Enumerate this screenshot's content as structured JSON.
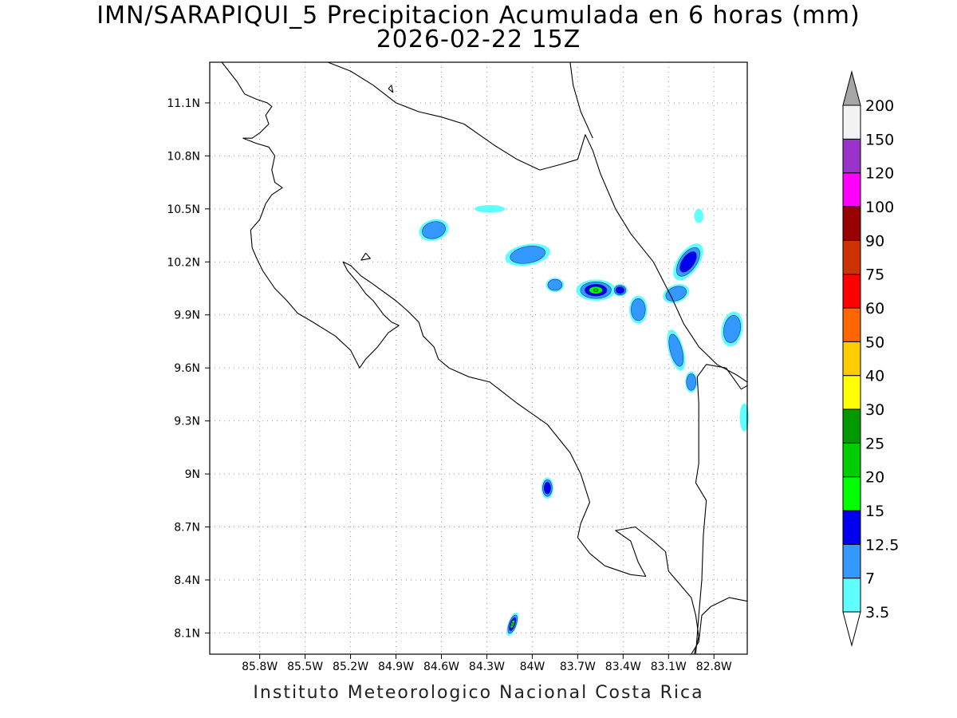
{
  "title": {
    "line1": "IMN/SARAPIQUI_5 Precipitacion Acumulada en 6 horas (mm)",
    "line2": "2026-02-22 15Z"
  },
  "footer": "Instituto Meteorologico Nacional Costa Rica",
  "map": {
    "lon_range": [
      -86.13,
      -82.58
    ],
    "lat_range": [
      7.98,
      11.33
    ],
    "x_ticks": [
      "85.8W",
      "85.5W",
      "85.2W",
      "84.9W",
      "84.6W",
      "84.3W",
      "84W",
      "83.7W",
      "83.4W",
      "83.1W",
      "82.8W"
    ],
    "x_tick_values": [
      -85.8,
      -85.5,
      -85.2,
      -84.9,
      -84.6,
      -84.3,
      -84.0,
      -83.7,
      -83.4,
      -83.1,
      -82.8
    ],
    "y_ticks": [
      "8.1N",
      "8.4N",
      "8.7N",
      "9N",
      "9.3N",
      "9.6N",
      "9.9N",
      "10.2N",
      "10.5N",
      "10.8N",
      "11.1N"
    ],
    "y_tick_values": [
      8.1,
      8.4,
      8.7,
      9.0,
      9.3,
      9.6,
      9.9,
      10.2,
      10.5,
      10.8,
      11.1
    ],
    "grid": "dotted",
    "coastline": [
      [
        [
          -86.05,
          11.33
        ],
        [
          -85.95,
          11.22
        ],
        [
          -85.9,
          11.15
        ],
        [
          -85.82,
          11.12
        ],
        [
          -85.75,
          11.1
        ],
        [
          -85.72,
          11.08
        ],
        [
          -85.76,
          11.03
        ],
        [
          -85.74,
          10.98
        ],
        [
          -85.8,
          10.93
        ],
        [
          -85.85,
          10.9
        ],
        [
          -85.91,
          10.9
        ],
        [
          -85.82,
          10.87
        ],
        [
          -85.74,
          10.85
        ],
        [
          -85.7,
          10.8
        ],
        [
          -85.72,
          10.72
        ],
        [
          -85.7,
          10.65
        ],
        [
          -85.65,
          10.62
        ],
        [
          -85.72,
          10.58
        ],
        [
          -85.76,
          10.53
        ],
        [
          -85.8,
          10.44
        ],
        [
          -85.86,
          10.38
        ],
        [
          -85.85,
          10.28
        ],
        [
          -85.82,
          10.22
        ],
        [
          -85.78,
          10.15
        ],
        [
          -85.7,
          10.05
        ],
        [
          -85.62,
          9.98
        ],
        [
          -85.55,
          9.91
        ],
        [
          -85.45,
          9.86
        ],
        [
          -85.3,
          9.78
        ],
        [
          -85.2,
          9.7
        ],
        [
          -85.14,
          9.6
        ],
        [
          -85.1,
          9.65
        ],
        [
          -85.02,
          9.72
        ],
        [
          -84.95,
          9.8
        ],
        [
          -84.88,
          9.84
        ],
        [
          -84.93,
          9.86
        ],
        [
          -84.98,
          9.9
        ],
        [
          -85.05,
          9.98
        ],
        [
          -85.1,
          10.02
        ],
        [
          -85.15,
          10.08
        ],
        [
          -85.22,
          10.15
        ],
        [
          -85.25,
          10.2
        ],
        [
          -85.2,
          10.18
        ],
        [
          -85.13,
          10.12
        ],
        [
          -85.06,
          10.08
        ],
        [
          -84.98,
          10.03
        ],
        [
          -84.9,
          9.98
        ],
        [
          -84.82,
          9.92
        ],
        [
          -84.75,
          9.86
        ],
        [
          -84.72,
          9.78
        ],
        [
          -84.65,
          9.72
        ],
        [
          -84.62,
          9.65
        ],
        [
          -84.55,
          9.6
        ],
        [
          -84.42,
          9.55
        ],
        [
          -84.28,
          9.52
        ],
        [
          -84.1,
          9.4
        ],
        [
          -83.9,
          9.28
        ],
        [
          -83.75,
          9.12
        ],
        [
          -83.68,
          9.0
        ],
        [
          -83.62,
          8.84
        ],
        [
          -83.68,
          8.72
        ],
        [
          -83.7,
          8.64
        ],
        [
          -83.62,
          8.55
        ],
        [
          -83.52,
          8.48
        ],
        [
          -83.35,
          8.43
        ],
        [
          -83.25,
          8.42
        ],
        [
          -83.3,
          8.5
        ],
        [
          -83.35,
          8.62
        ],
        [
          -83.45,
          8.68
        ],
        [
          -83.32,
          8.7
        ],
        [
          -83.2,
          8.62
        ],
        [
          -83.12,
          8.56
        ],
        [
          -83.1,
          8.45
        ],
        [
          -83.05,
          8.4
        ],
        [
          -82.95,
          8.3
        ],
        [
          -82.92,
          8.2
        ],
        [
          -82.9,
          8.08
        ],
        [
          -82.93,
          7.98
        ]
      ],
      [
        [
          -82.95,
          7.98
        ],
        [
          -82.9,
          8.05
        ],
        [
          -82.88,
          8.2
        ],
        [
          -82.82,
          8.25
        ],
        [
          -82.7,
          8.3
        ],
        [
          -82.58,
          8.28
        ]
      ],
      [
        [
          -85.1,
          10.25
        ],
        [
          -85.13,
          10.21
        ],
        [
          -85.07,
          10.22
        ],
        [
          -85.1,
          10.25
        ]
      ],
      [
        [
          -85.35,
          11.33
        ],
        [
          -85.2,
          11.28
        ],
        [
          -85.05,
          11.2
        ],
        [
          -84.9,
          11.1
        ],
        [
          -84.75,
          11.05
        ],
        [
          -84.6,
          11.02
        ],
        [
          -84.45,
          10.98
        ],
        [
          -84.35,
          10.92
        ],
        [
          -84.25,
          10.86
        ],
        [
          -84.1,
          10.78
        ],
        [
          -83.95,
          10.72
        ],
        [
          -83.82,
          10.75
        ],
        [
          -83.7,
          10.78
        ],
        [
          -83.65,
          10.92
        ],
        [
          -83.6,
          10.83
        ],
        [
          -83.55,
          10.7
        ],
        [
          -83.45,
          10.5
        ],
        [
          -83.35,
          10.36
        ],
        [
          -83.2,
          10.2
        ],
        [
          -83.08,
          10.0
        ],
        [
          -83.0,
          9.85
        ],
        [
          -82.9,
          9.72
        ],
        [
          -82.78,
          9.62
        ],
        [
          -82.65,
          9.56
        ],
        [
          -82.58,
          9.52
        ]
      ],
      [
        [
          -83.75,
          11.33
        ],
        [
          -83.73,
          11.2
        ],
        [
          -83.68,
          11.05
        ],
        [
          -83.6,
          10.9
        ]
      ],
      [
        [
          -84.95,
          11.18
        ],
        [
          -84.93,
          11.2
        ],
        [
          -84.92,
          11.16
        ],
        [
          -84.95,
          11.18
        ]
      ]
    ],
    "border": [
      [
        -82.92,
        7.98
      ],
      [
        -82.9,
        8.2
      ],
      [
        -82.88,
        8.4
      ],
      [
        -82.87,
        8.65
      ],
      [
        -82.85,
        8.85
      ],
      [
        -82.92,
        8.95
      ],
      [
        -82.9,
        9.06
      ],
      [
        -82.9,
        9.4
      ],
      [
        -82.91,
        9.55
      ],
      [
        -82.85,
        9.62
      ],
      [
        -82.72,
        9.6
      ],
      [
        -82.62,
        9.48
      ],
      [
        -82.58,
        9.5
      ]
    ],
    "precip_cells": [
      {
        "lon": -84.65,
        "lat": 10.38,
        "rx": 0.1,
        "ry": 0.06,
        "rot": -15,
        "max_level": 1
      },
      {
        "lon": -84.28,
        "lat": 10.5,
        "rx": 0.1,
        "ry": 0.022,
        "rot": 0,
        "max_level": 0
      },
      {
        "lon": -84.03,
        "lat": 10.24,
        "rx": 0.15,
        "ry": 0.06,
        "rot": -10,
        "max_level": 1
      },
      {
        "lon": -83.85,
        "lat": 10.07,
        "rx": 0.06,
        "ry": 0.04,
        "rot": 0,
        "max_level": 1
      },
      {
        "lon": -83.58,
        "lat": 10.04,
        "rx": 0.13,
        "ry": 0.06,
        "rot": 0,
        "max_level": 4
      },
      {
        "lon": -83.42,
        "lat": 10.04,
        "rx": 0.05,
        "ry": 0.035,
        "rot": 0,
        "max_level": 2
      },
      {
        "lon": -83.3,
        "lat": 9.93,
        "rx": 0.06,
        "ry": 0.08,
        "rot": 0,
        "max_level": 1
      },
      {
        "lon": -82.97,
        "lat": 10.2,
        "rx": 0.07,
        "ry": 0.12,
        "rot": 35,
        "max_level": 2
      },
      {
        "lon": -83.05,
        "lat": 10.02,
        "rx": 0.09,
        "ry": 0.05,
        "rot": -20,
        "max_level": 1
      },
      {
        "lon": -82.68,
        "lat": 9.82,
        "rx": 0.07,
        "ry": 0.1,
        "rot": 10,
        "max_level": 1
      },
      {
        "lon": -83.05,
        "lat": 9.7,
        "rx": 0.05,
        "ry": 0.12,
        "rot": -15,
        "max_level": 1
      },
      {
        "lon": -82.95,
        "lat": 9.52,
        "rx": 0.04,
        "ry": 0.06,
        "rot": 0,
        "max_level": 1
      },
      {
        "lon": -82.6,
        "lat": 9.32,
        "rx": 0.03,
        "ry": 0.08,
        "rot": 0,
        "max_level": 0
      },
      {
        "lon": -82.9,
        "lat": 10.46,
        "rx": 0.03,
        "ry": 0.04,
        "rot": 0,
        "max_level": 0
      },
      {
        "lon": -83.9,
        "lat": 8.92,
        "rx": 0.04,
        "ry": 0.06,
        "rot": 0,
        "max_level": 2
      },
      {
        "lon": -84.13,
        "lat": 8.15,
        "rx": 0.03,
        "ry": 0.07,
        "rot": 20,
        "max_level": 4
      }
    ]
  },
  "colorbar": {
    "levels": [
      "3.5",
      "7",
      "12.5",
      "15",
      "20",
      "25",
      "30",
      "40",
      "50",
      "60",
      "75",
      "90",
      "100",
      "120",
      "150",
      "200"
    ],
    "colors": [
      "#60ffff",
      "#3399ff",
      "#0000ee",
      "#00ff00",
      "#00cc00",
      "#009900",
      "#ffff00",
      "#ffcc00",
      "#ff6600",
      "#ff0000",
      "#cc3300",
      "#990000",
      "#ff00ff",
      "#9933cc",
      "#f2f2f2"
    ],
    "top_arrow_color": "#a6a6a6",
    "bottom_arrow_color": "#ffffff"
  }
}
